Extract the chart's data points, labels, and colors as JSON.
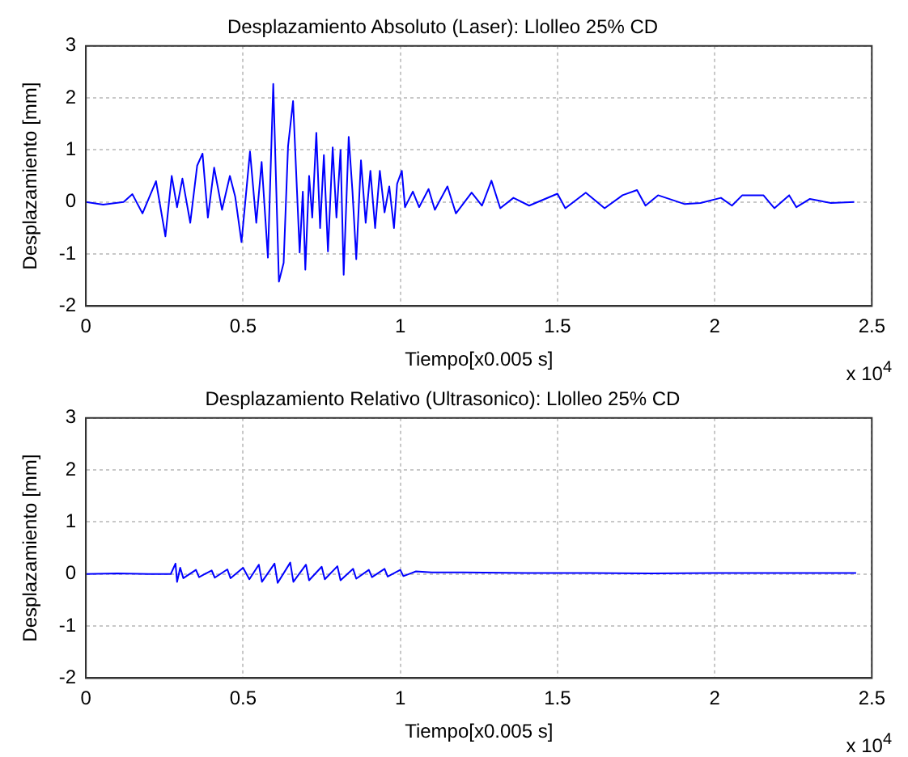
{
  "chart_data": [
    {
      "type": "line",
      "title": "Desplazamiento Absoluto (Laser): Llolleo 25% CD",
      "xlabel": "Tiempo[x0.005 s]",
      "ylabel": "Desplazamiento [mm]",
      "annotations": [
        "x 10$^{4}$"
      ],
      "xlim": [
        0,
        2.5
      ],
      "xticks": [
        0,
        0.5,
        1,
        1.5,
        2,
        2.5
      ],
      "ylim": [
        -2,
        3
      ],
      "yticks": [
        -2,
        -1,
        0,
        1,
        2,
        3
      ],
      "grid": true,
      "legend": false,
      "marker": "none",
      "line_style": "solid",
      "series": [
        {
          "color": "#0000ff",
          "x": [
            0,
            0.055,
            0.12,
            0.148,
            0.18,
            0.223,
            0.253,
            0.273,
            0.29,
            0.307,
            0.332,
            0.354,
            0.371,
            0.388,
            0.408,
            0.433,
            0.458,
            0.475,
            0.495,
            0.522,
            0.542,
            0.559,
            0.579,
            0.596,
            0.614,
            0.629,
            0.643,
            0.659,
            0.68,
            0.69,
            0.698,
            0.71,
            0.72,
            0.733,
            0.745,
            0.757,
            0.77,
            0.785,
            0.797,
            0.81,
            0.82,
            0.836,
            0.848,
            0.86,
            0.875,
            0.89,
            0.905,
            0.92,
            0.935,
            0.95,
            0.965,
            0.98,
            0.99,
            1.005,
            1.015,
            1.04,
            1.06,
            1.09,
            1.11,
            1.15,
            1.177,
            1.227,
            1.26,
            1.29,
            1.318,
            1.36,
            1.41,
            1.5,
            1.525,
            1.59,
            1.65,
            1.707,
            1.753,
            1.78,
            1.82,
            1.905,
            1.955,
            2.02,
            2.055,
            2.088,
            2.155,
            2.19,
            2.237,
            2.26,
            2.303,
            2.37,
            2.444
          ],
          "values": [
            0,
            -0.05,
            0,
            0.15,
            -0.22,
            0.4,
            -0.66,
            0.5,
            -0.1,
            0.45,
            -0.4,
            0.7,
            0.93,
            -0.3,
            0.66,
            -0.15,
            0.5,
            0.1,
            -0.77,
            0.97,
            -0.4,
            0.77,
            -1.07,
            2.27,
            -1.53,
            -1.17,
            1.07,
            1.94,
            -0.97,
            0.2,
            -1.3,
            0.5,
            -0.3,
            1.33,
            -0.5,
            0.9,
            -0.95,
            1.05,
            -0.3,
            1,
            -1.4,
            1.25,
            0.2,
            -1.1,
            0.8,
            -0.4,
            0.6,
            -0.5,
            0.6,
            -0.2,
            0.3,
            -0.5,
            0.35,
            0.6,
            -0.1,
            0.2,
            -0.1,
            0.25,
            -0.15,
            0.3,
            -0.22,
            0.18,
            -0.07,
            0.41,
            -0.12,
            0.08,
            -0.07,
            0.16,
            -0.12,
            0.18,
            -0.12,
            0.13,
            0.23,
            -0.07,
            0.13,
            -0.04,
            -0.02,
            0.08,
            -0.07,
            0.13,
            0.13,
            -0.12,
            0.13,
            -0.1,
            0.06,
            -0.02,
            0
          ]
        }
      ]
    },
    {
      "type": "line",
      "title": "Desplazamiento Relativo (Ultrasonico): Llolleo 25% CD",
      "xlabel": "Tiempo[x0.005 s]",
      "ylabel": "Desplazamiento [mm]",
      "annotations": [
        "x 10$^{4}$"
      ],
      "xlim": [
        0,
        2.5
      ],
      "xticks": [
        0,
        0.5,
        1,
        1.5,
        2,
        2.5
      ],
      "ylim": [
        -2,
        3
      ],
      "yticks": [
        -2,
        -1,
        0,
        1,
        2,
        3
      ],
      "grid": true,
      "legend": false,
      "marker": "none",
      "line_style": "solid",
      "series": [
        {
          "color": "#0000ff",
          "x": [
            0,
            0.1,
            0.2,
            0.27,
            0.285,
            0.29,
            0.3,
            0.31,
            0.35,
            0.36,
            0.4,
            0.41,
            0.45,
            0.46,
            0.5,
            0.52,
            0.55,
            0.56,
            0.6,
            0.61,
            0.65,
            0.66,
            0.7,
            0.71,
            0.75,
            0.76,
            0.8,
            0.81,
            0.85,
            0.86,
            0.9,
            0.91,
            0.95,
            0.96,
            1,
            1.01,
            1.05,
            1.1,
            1.2,
            1.4,
            1.6,
            1.8,
            2,
            2.2,
            2.45
          ],
          "values": [
            0,
            0.01,
            0,
            0,
            0.2,
            -0.15,
            0.12,
            -0.08,
            0.08,
            -0.06,
            0.07,
            -0.07,
            0.09,
            -0.08,
            0.12,
            -0.1,
            0.18,
            -0.15,
            0.2,
            -0.17,
            0.22,
            -0.15,
            0.18,
            -0.12,
            0.14,
            -0.1,
            0.15,
            -0.12,
            0.1,
            -0.09,
            0.08,
            -0.06,
            0.1,
            -0.05,
            0.08,
            -0.04,
            0.05,
            0.03,
            0.03,
            0.02,
            0.02,
            0.01,
            0.02,
            0.02,
            0.02
          ]
        }
      ]
    }
  ]
}
